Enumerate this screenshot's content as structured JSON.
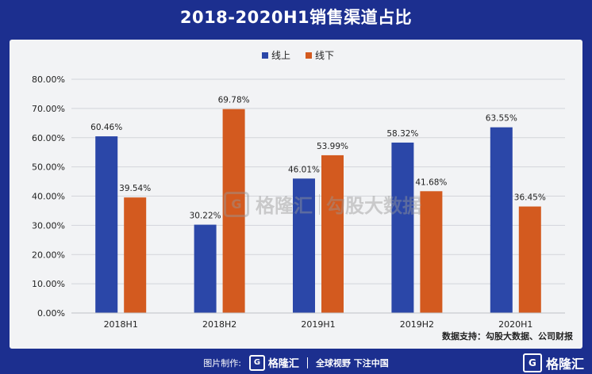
{
  "title": "2018-2020H1销售渠道占比",
  "source": "数据支持：勾股大数据、公司财报",
  "watermark": {
    "logo_text": "格隆汇",
    "text": "勾股大数据"
  },
  "footer": {
    "made_by": "图片制作:",
    "logo_text": "格隆汇",
    "slogan": "全球视野 下注中国"
  },
  "corner_logo": "格隆汇",
  "colors": {
    "online": "#2b47a8",
    "offline": "#d35a1f",
    "background": "#1c2f8f"
  },
  "chart_data": {
    "type": "bar",
    "categories": [
      "2018H1",
      "2018H2",
      "2019H1",
      "2019H2",
      "2020H1"
    ],
    "series": [
      {
        "name": "线上",
        "values": [
          60.46,
          30.22,
          46.01,
          58.32,
          63.55
        ],
        "labels": [
          "60.46%",
          "30.22%",
          "46.01%",
          "58.32%",
          "63.55%"
        ]
      },
      {
        "name": "线下",
        "values": [
          39.54,
          69.78,
          53.99,
          41.68,
          36.45
        ],
        "labels": [
          "39.54%",
          "69.78%",
          "53.99%",
          "41.68%",
          "36.45%"
        ]
      }
    ],
    "ylim": [
      0,
      80
    ],
    "yticks": [
      "0.00%",
      "10.00%",
      "20.00%",
      "30.00%",
      "40.00%",
      "50.00%",
      "60.00%",
      "70.00%",
      "80.00%"
    ],
    "grid": true,
    "legend": "top-center"
  }
}
